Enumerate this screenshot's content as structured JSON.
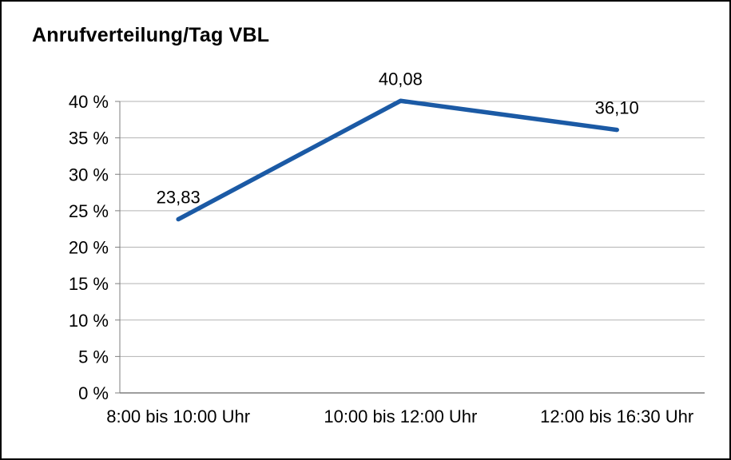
{
  "chart_data": {
    "type": "line",
    "title": "Anrufverteilung/Tag VBL",
    "categories": [
      "8:00 bis 10:00 Uhr",
      "10:00 bis 12:00 Uhr",
      "12:00 bis 16:30 Uhr"
    ],
    "values": [
      23.83,
      40.08,
      36.1
    ],
    "value_labels": [
      "23,83",
      "40,08",
      "36,10"
    ],
    "xlabel": "",
    "ylabel": "",
    "ylim": [
      0,
      40
    ],
    "ytick_step": 5,
    "ytick_suffix": " %",
    "grid": true,
    "legend": false,
    "colors": {
      "line": "#1B5AA5",
      "grid": "#b3b3b3",
      "axis": "#7f7f7f",
      "text": "#000000",
      "background": "#ffffff",
      "border": "#000000"
    }
  }
}
